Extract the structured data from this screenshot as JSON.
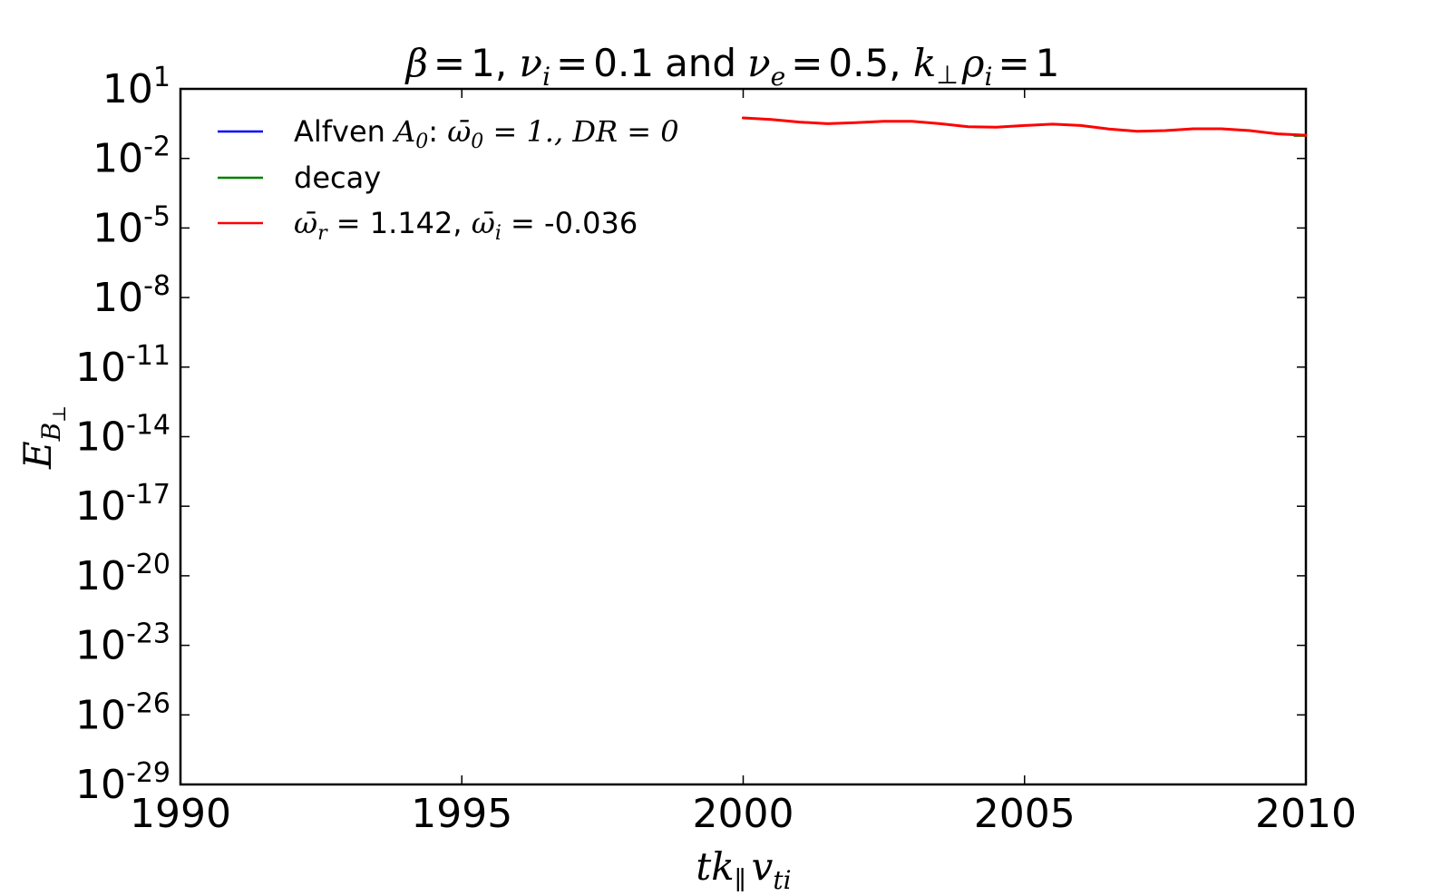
{
  "chart_data": {
    "type": "line",
    "title": "β = 1, ν_i = 0.1 and ν_e = 0.5, k_⊥ ρ_i = 1",
    "title_parts": {
      "beta": "β",
      "beta_val": "1",
      "nu_i": "ν",
      "nu_i_sub": "i",
      "nu_i_val": "0.1",
      "and": "and",
      "nu_e": "ν",
      "nu_e_sub": "e",
      "nu_e_val": "0.5",
      "k": "k",
      "perp": "⊥",
      "rho": "ρ",
      "rho_sub": "i",
      "k_val": "1"
    },
    "xlabel": "t k_∥ v_ti",
    "ylabel": "E_B⊥",
    "xlabel_parts": {
      "t": "t",
      "k": "k",
      "par": "∥",
      "v": "v",
      "sub": "ti"
    },
    "ylabel_parts": {
      "E": "E",
      "B": "B",
      "perp": "⊥"
    },
    "x_scale": "linear",
    "y_scale": "log",
    "xlim": [
      1990,
      2010
    ],
    "ylim_exp": [
      -29,
      1
    ],
    "x_ticks": [
      1990,
      1995,
      2000,
      2005,
      2010
    ],
    "y_tick_exponents": [
      1,
      -2,
      -5,
      -8,
      -11,
      -14,
      -17,
      -20,
      -23,
      -26,
      -29
    ],
    "y_tick_base": "10",
    "grid": false,
    "legend_position": "top-left",
    "series": [
      {
        "name": "Alfven A0: ω̄0 = 1., DR = 0",
        "legend_parts": {
          "text": "Alfven ",
          "A": "A",
          "A_sub": "0",
          "colon": ": ",
          "omega": "ω̄",
          "omega_sub": "0",
          "eq": " = 1., ",
          "DR": "DR",
          "eq2": " = 0"
        },
        "color": "#0000ff",
        "x": [],
        "log10_y": []
      },
      {
        "name": "decay",
        "color": "#008000",
        "x": [
          2009.8,
          2010
        ],
        "log10_y": [
          -1.01,
          -1.01
        ]
      },
      {
        "name": "ω̄r = 1.142, ω̄i = -0.036",
        "legend_parts": {
          "omega_r": "ω̄",
          "r_sub": "r",
          "eq_r": " = 1.142, ",
          "omega_i": "ω̄",
          "i_sub": "i",
          "eq_i": " = -0.036"
        },
        "color": "#ff0000",
        "x": [
          2000,
          2000.5,
          2001,
          2001.5,
          2002,
          2002.5,
          2003,
          2003.5,
          2004,
          2004.5,
          2005,
          2005.5,
          2006,
          2006.5,
          2007,
          2007.5,
          2008,
          2008.5,
          2009,
          2009.5,
          2010
        ],
        "log10_y": [
          -0.25,
          -0.32,
          -0.43,
          -0.5,
          -0.46,
          -0.4,
          -0.4,
          -0.5,
          -0.63,
          -0.65,
          -0.58,
          -0.52,
          -0.58,
          -0.73,
          -0.83,
          -0.8,
          -0.72,
          -0.72,
          -0.8,
          -0.94,
          -1.0
        ]
      }
    ]
  }
}
